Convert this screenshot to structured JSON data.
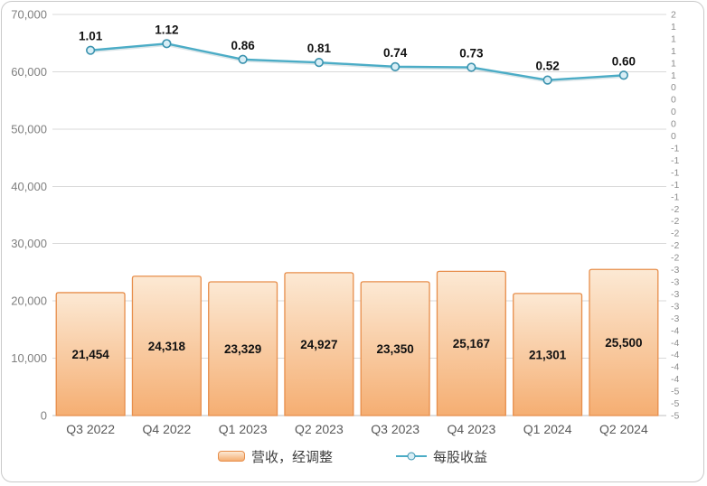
{
  "frame": {
    "border_color": "#C9C9C9",
    "background": "#FFFFFF"
  },
  "chart_data": {
    "type": "combo-bar-line",
    "categories": [
      "Q3 2022",
      "Q4 2022",
      "Q1 2023",
      "Q2 2023",
      "Q3 2023",
      "Q4 2023",
      "Q1 2024",
      "Q2 2024"
    ],
    "series": [
      {
        "name": "营收，经调整",
        "type": "bar",
        "axis": "left",
        "values": [
          21454,
          24318,
          23329,
          24927,
          23350,
          25167,
          21301,
          25500
        ],
        "labels": [
          "21,454",
          "24,318",
          "23,329",
          "24,927",
          "23,350",
          "25,167",
          "21,301",
          "25,500"
        ]
      },
      {
        "name": "每股收益",
        "type": "line",
        "axis": "right",
        "values": [
          1.01,
          1.12,
          0.86,
          0.81,
          0.74,
          0.73,
          0.52,
          0.6
        ],
        "labels": [
          "1.01",
          "1.12",
          "0.86",
          "0.81",
          "0.74",
          "0.73",
          "0.52",
          "0.60"
        ]
      }
    ],
    "left_axis": {
      "min": 0,
      "max": 70000,
      "tick_labels": [
        "70,000",
        "60,000",
        "50,000",
        "40,000",
        "30,000",
        "20,000",
        "10,000",
        "0"
      ]
    },
    "right_axis": {
      "min": -5.0,
      "max": 1.6,
      "step": 0.2,
      "tick_labels": [
        "2",
        "1",
        "1",
        "1",
        "1",
        "1",
        "0",
        "0",
        "0",
        "0",
        "0",
        "-1",
        "-1",
        "-1",
        "-1",
        "-1",
        "-2",
        "-2",
        "-2",
        "-2",
        "-2",
        "-3",
        "-3",
        "-3",
        "-3",
        "-3",
        "-4",
        "-4",
        "-4",
        "-4",
        "-4",
        "-5",
        "-5",
        "-5"
      ]
    },
    "grid": true,
    "legend_position": "bottom",
    "style": {
      "bar_fill_top": "#FCE9D4",
      "bar_fill_bottom": "#F5AE72",
      "bar_border": "#E78E4B",
      "line_color": "#4BACC6",
      "marker_fill": "#D8EEF6",
      "marker_stroke": "#3A92AE",
      "grid_color": "#D9D9D9",
      "axis_line_color": "#BFBFBF",
      "left_tick_color": "#7F7F7F",
      "right_tick_color": "#8C8C8C",
      "x_tick_color": "#595959",
      "data_label_color": "#111111",
      "legend_text_color": "#3F3F3F"
    }
  }
}
